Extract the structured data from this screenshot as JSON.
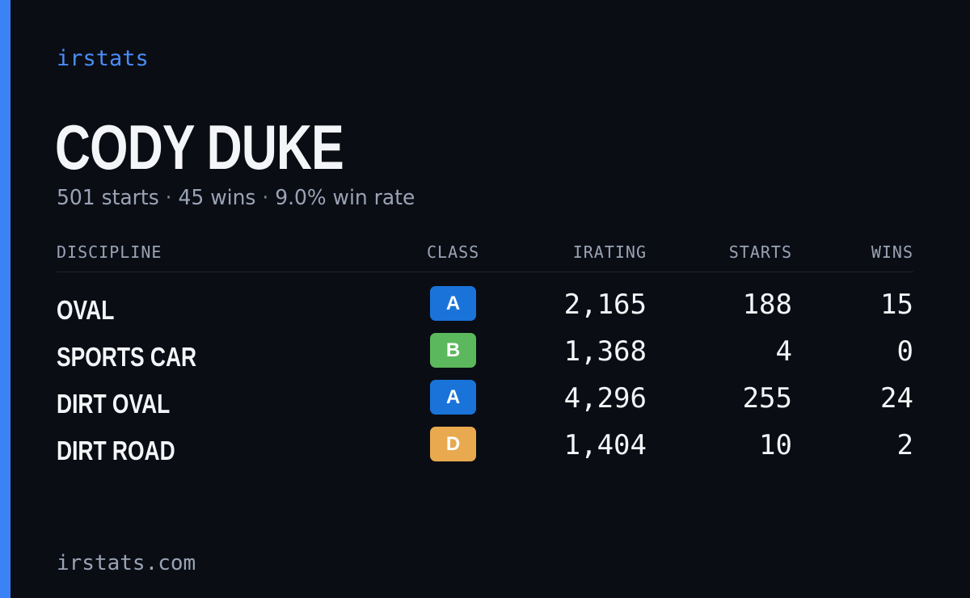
{
  "brand": "irstats",
  "driver": {
    "name": "CODY DUKE",
    "starts": "501 starts",
    "wins": "45 wins",
    "win_rate": "9.0% win rate",
    "separator": "·"
  },
  "table": {
    "headers": {
      "discipline": "DISCIPLINE",
      "class": "CLASS",
      "irating": "IRATING",
      "starts": "STARTS",
      "wins": "WINS"
    },
    "rows": [
      {
        "discipline": "OVAL",
        "class": "A",
        "class_color": "#1a73d9",
        "irating": "2,165",
        "starts": "188",
        "wins": "15"
      },
      {
        "discipline": "SPORTS CAR",
        "class": "B",
        "class_color": "#5cb85c",
        "irating": "1,368",
        "starts": "4",
        "wins": "0"
      },
      {
        "discipline": "DIRT OVAL",
        "class": "A",
        "class_color": "#1a73d9",
        "irating": "4,296",
        "starts": "255",
        "wins": "24"
      },
      {
        "discipline": "DIRT ROAD",
        "class": "D",
        "class_color": "#e8a94f",
        "irating": "1,404",
        "starts": "10",
        "wins": "2"
      }
    ]
  },
  "footer": "irstats.com",
  "colors": {
    "background": "#0a0d14",
    "accent": "#3b82f6"
  }
}
